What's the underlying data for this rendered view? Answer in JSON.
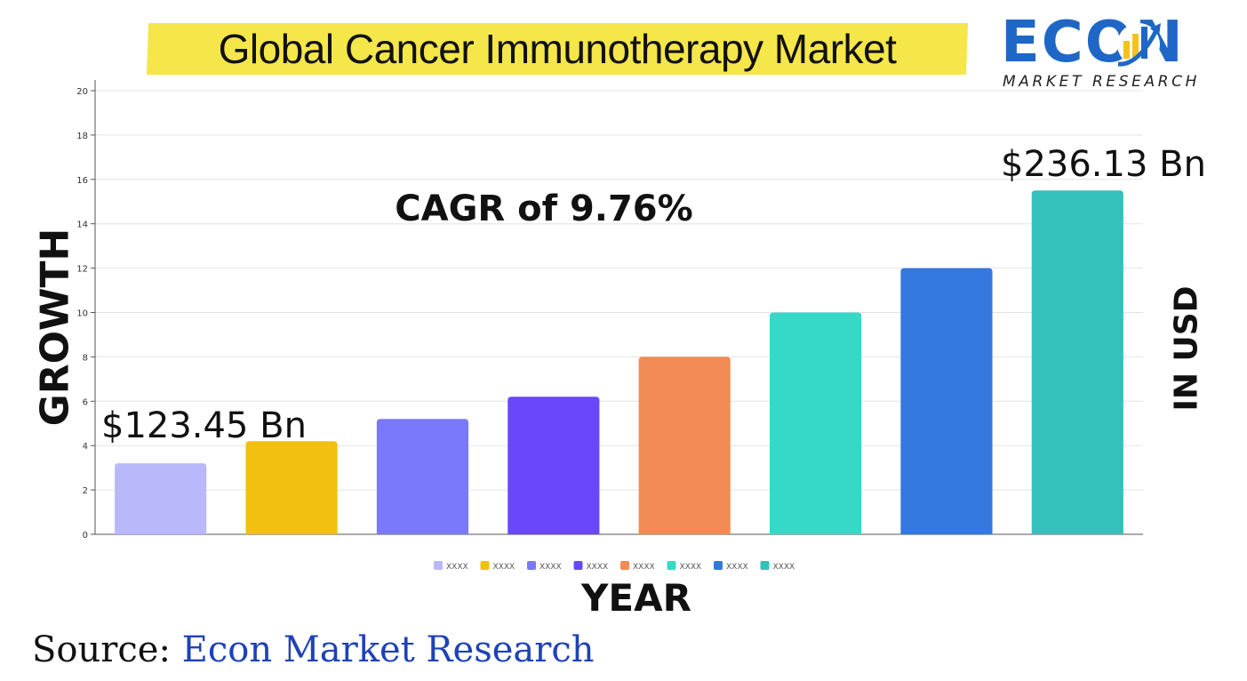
{
  "title": "Global Cancer Immunotherapy Market",
  "logo": {
    "word": "ECON",
    "subtitle": "MARKET RESEARCH",
    "icon": "growth-chart-icon"
  },
  "axis_label_left": "GROWTH",
  "axis_label_right": "IN USD",
  "axis_label_bottom": "YEAR",
  "source_prefix": "Source:",
  "source_name": "Econ Market Research",
  "colors": {
    "title_highlight": "#f5e64a",
    "brand": "#1e67c6",
    "source_link": "#1e42b6"
  },
  "chart_data": {
    "type": "bar",
    "ylim": [
      0,
      20
    ],
    "yticks": [
      0,
      2,
      4,
      6,
      8,
      10,
      12,
      14,
      16,
      18,
      20
    ],
    "grid": true,
    "legend_position": "bottom",
    "values": [
      3.2,
      4.2,
      5.2,
      6.2,
      8.0,
      10.0,
      12.0,
      15.5
    ],
    "series_labels": [
      "XXXX",
      "XXXX",
      "XXXX",
      "XXXX",
      "XXXX",
      "XXXX",
      "XXXX",
      "XXXX"
    ],
    "colors": [
      "#b9b8fb",
      "#f2c010",
      "#7979fa",
      "#6b47fc",
      "#f28b55",
      "#36d8c8",
      "#3478e0",
      "#35c1bb"
    ],
    "annotations": {
      "start_value": "$123.45 Bn",
      "end_value": "$236.13 Bn",
      "cagr": "CAGR of 9.76%"
    }
  }
}
